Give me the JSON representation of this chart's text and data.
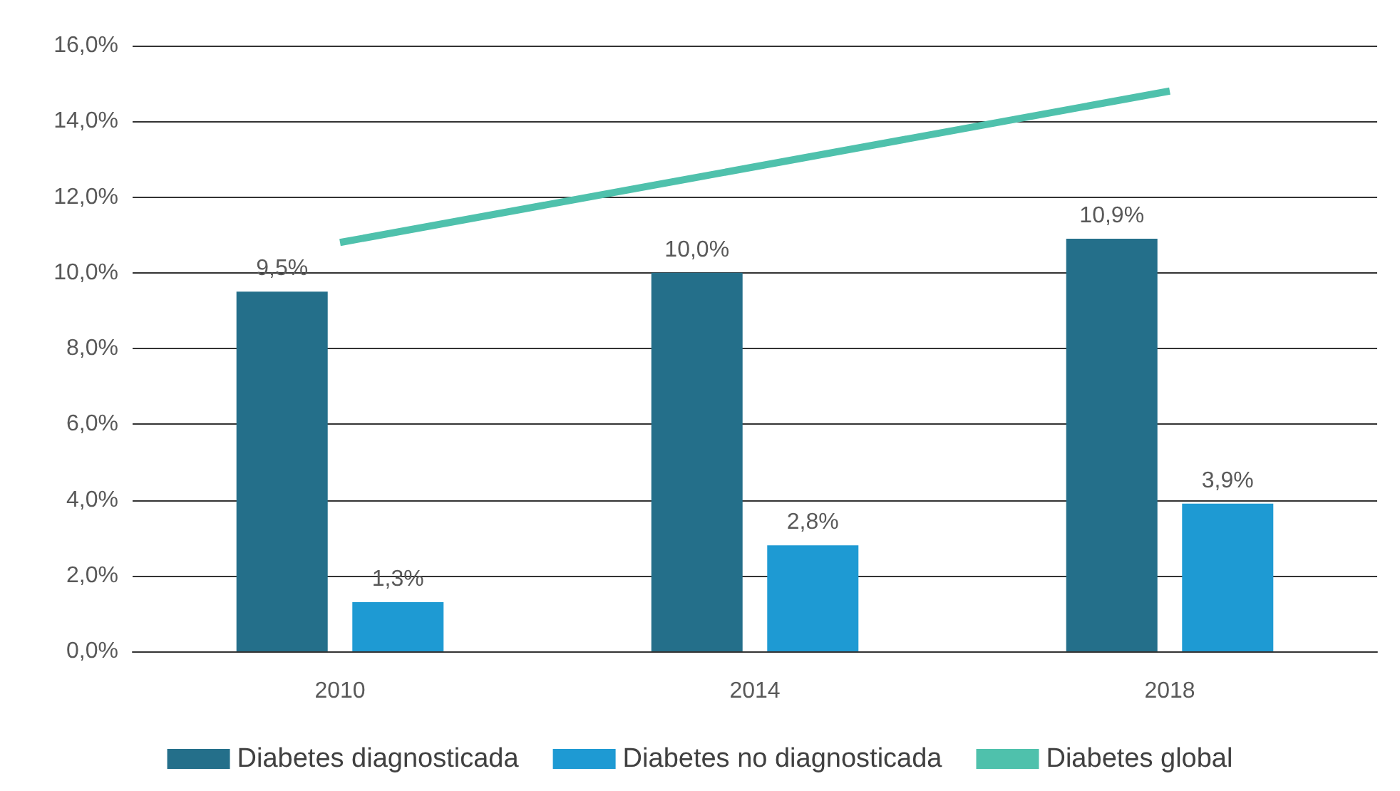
{
  "chart_data": {
    "type": "bar",
    "categories": [
      "2010",
      "2014",
      "2018"
    ],
    "series": [
      {
        "name": "Diabetes diagnosticada",
        "color": "#246f8a",
        "values": [
          9.5,
          10.0,
          10.9
        ],
        "value_labels": [
          "9,5%",
          "10,0%",
          "10,9%"
        ]
      },
      {
        "name": "Diabetes no diagnosticada",
        "color": "#1e9ad3",
        "values": [
          1.3,
          2.8,
          3.9
        ],
        "value_labels": [
          "1,3%",
          "2,8%",
          "3,9%"
        ]
      },
      {
        "name": "Diabetes global",
        "type": "line",
        "color": "#4fc1ac",
        "values": [
          10.8,
          12.8,
          14.8
        ],
        "marker": "none"
      }
    ],
    "ylim": [
      0,
      16
    ],
    "yticks": [
      {
        "value": 0,
        "label": "0,0%"
      },
      {
        "value": 2,
        "label": "2,0%"
      },
      {
        "value": 4,
        "label": "4,0%"
      },
      {
        "value": 6,
        "label": "6,0%"
      },
      {
        "value": 8,
        "label": "8,0%"
      },
      {
        "value": 10,
        "label": "10,0%"
      },
      {
        "value": 12,
        "label": "12,0%"
      },
      {
        "value": 14,
        "label": "14,0%"
      },
      {
        "value": 16,
        "label": "16,0%"
      }
    ],
    "grid": "y",
    "legend": "bottom"
  }
}
